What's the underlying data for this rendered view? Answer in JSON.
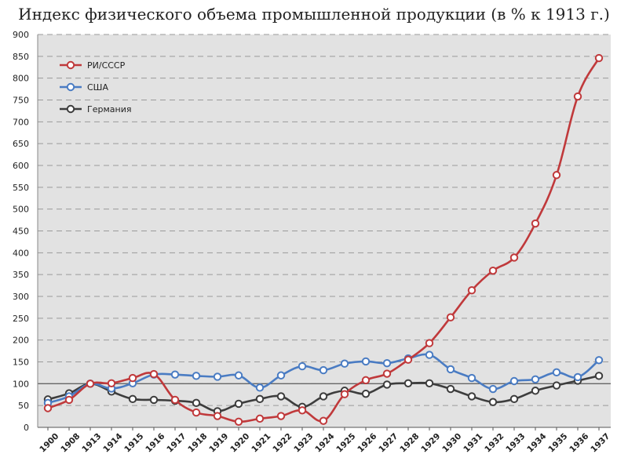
{
  "chart_data": {
    "type": "line",
    "title": "Индекс физического объема промышленной продукции (в % к 1913 г.)",
    "xlabel": "",
    "ylabel": "",
    "ylim": [
      0,
      900
    ],
    "yticks": [
      0,
      50,
      100,
      150,
      200,
      250,
      300,
      350,
      400,
      450,
      500,
      550,
      600,
      650,
      700,
      750,
      800,
      850,
      900
    ],
    "categories": [
      "1900",
      "1908",
      "1913",
      "1914",
      "1915",
      "1916",
      "1917",
      "1918",
      "1919",
      "1920",
      "1921",
      "1922",
      "1923",
      "1924",
      "1925",
      "1926",
      "1927",
      "1928",
      "1929",
      "1930",
      "1931",
      "1932",
      "1933",
      "1934",
      "1935",
      "1936",
      "1937"
    ],
    "reference_line": 100,
    "grid": "horizontal dashed",
    "legend_position": "top-left",
    "series": [
      {
        "name": "РИ/СССР",
        "color": "#c0393b",
        "values": [
          44,
          63,
          100,
          101,
          113,
          122,
          63,
          34,
          26,
          13,
          20,
          26,
          39,
          15,
          76,
          108,
          123,
          155,
          193,
          252,
          314,
          359,
          389,
          467,
          578,
          758,
          846
        ]
      },
      {
        "name": "США",
        "color": "#4a7cc3",
        "values": [
          56,
          71,
          100,
          89,
          101,
          121,
          121,
          118,
          116,
          119,
          91,
          119,
          140,
          131,
          146,
          151,
          147,
          158,
          166,
          133,
          113,
          88,
          106,
          110,
          126,
          115,
          154
        ]
      },
      {
        "name": "Германия",
        "color": "#3d3d3d",
        "values": [
          64,
          78,
          100,
          82,
          65,
          63,
          61,
          56,
          37,
          54,
          65,
          71,
          47,
          71,
          84,
          77,
          98,
          101,
          101,
          88,
          71,
          58,
          65,
          84,
          96,
          107,
          118
        ]
      }
    ]
  }
}
